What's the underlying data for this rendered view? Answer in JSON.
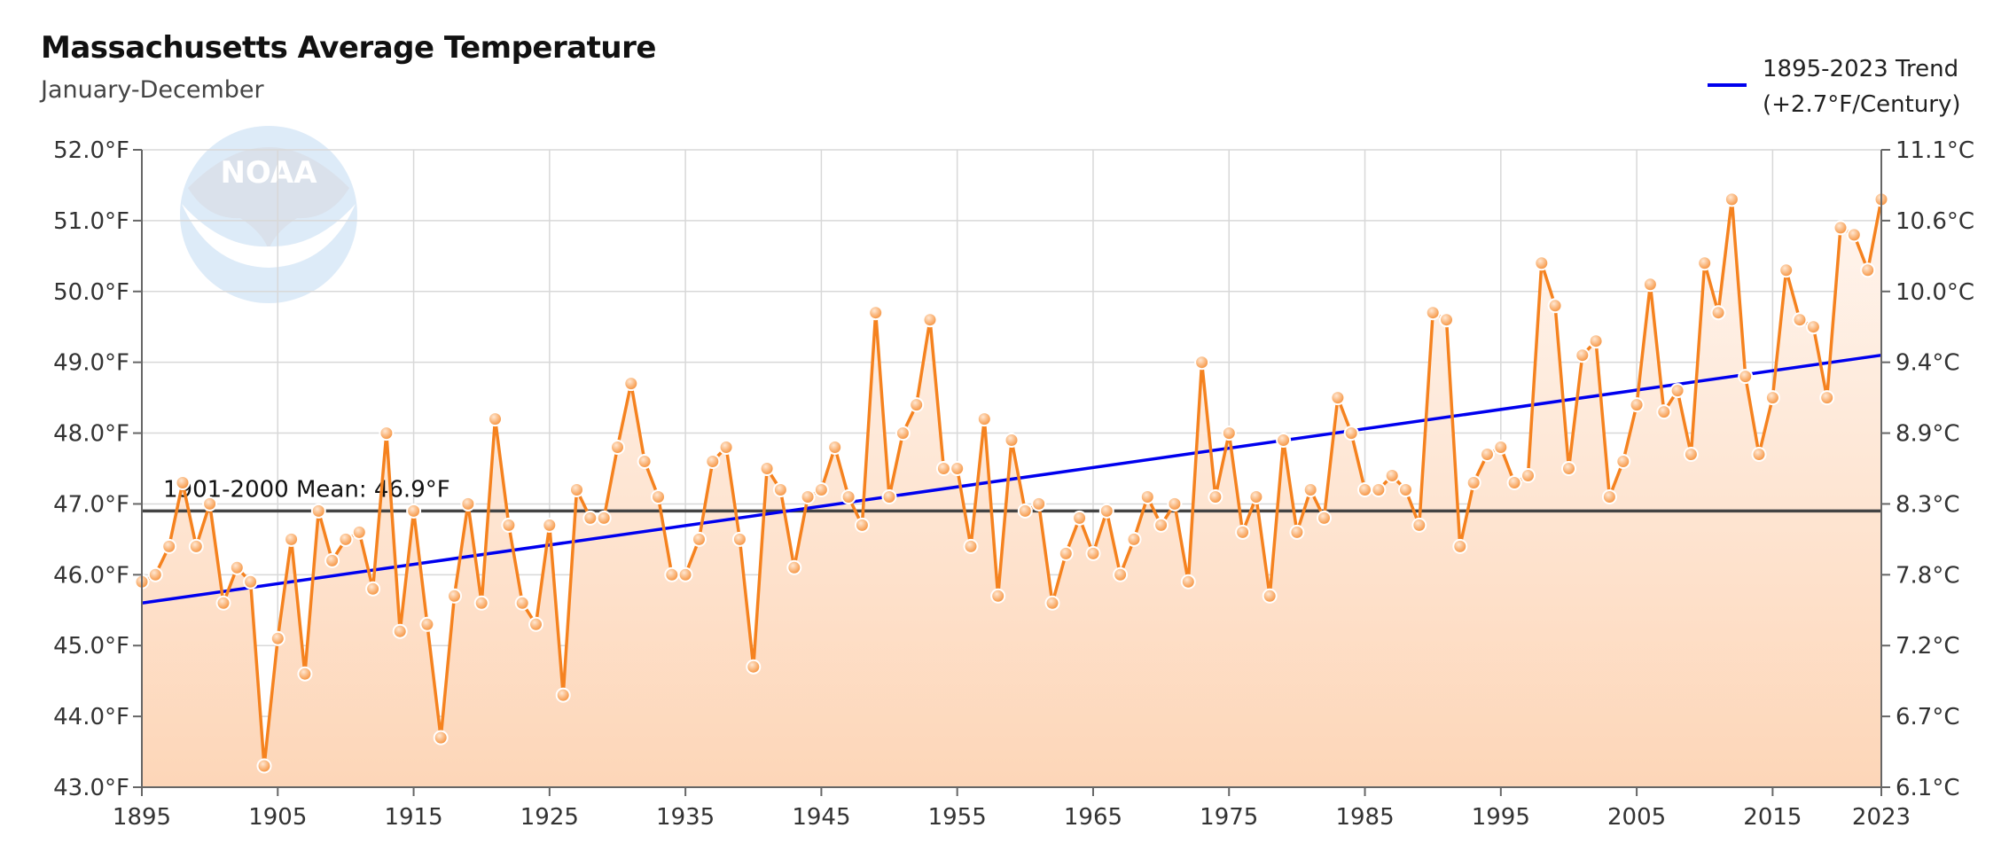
{
  "chart_data": {
    "type": "line",
    "title": "Massachusetts Average Temperature",
    "subtitle": "January-December",
    "xlabel": "",
    "ylabel": "",
    "xlim": [
      1895,
      2023
    ],
    "ylim": [
      43.0,
      52.0
    ],
    "x_ticks": [
      "1895",
      "1905",
      "1915",
      "1925",
      "1935",
      "1945",
      "1955",
      "1965",
      "1975",
      "1985",
      "1995",
      "2005",
      "2015",
      "2023"
    ],
    "y_ticks_left": [
      "52.0°F",
      "51.0°F",
      "50.0°F",
      "49.0°F",
      "48.0°F",
      "47.0°F",
      "46.0°F",
      "45.0°F",
      "44.0°F",
      "43.0°F"
    ],
    "y_ticks_right": [
      "11.1°C",
      "10.6°C",
      "10.0°C",
      "9.4°C",
      "8.9°C",
      "8.3°C",
      "7.8°C",
      "7.2°C",
      "6.7°C",
      "6.1°C"
    ],
    "grid": true,
    "legend_position": "top-right",
    "colors": {
      "series": "#f5821f",
      "trend": "#0000ee",
      "mean": "#444444",
      "fill": "#fdd9bf"
    },
    "mean": {
      "label": "1901-2000 Mean: 46.9°F",
      "value": 46.9
    },
    "trend": {
      "label_line1": "1895-2023 Trend",
      "label_line2": "(+2.7°F/Century)",
      "start": [
        1895,
        45.6
      ],
      "end": [
        2023,
        49.1
      ]
    },
    "series": [
      {
        "x": [
          1895,
          1896,
          1897,
          1898,
          1899,
          1900,
          1901,
          1902,
          1903,
          1904,
          1905,
          1906,
          1907,
          1908,
          1909,
          1910,
          1911,
          1912,
          1913,
          1914,
          1915,
          1916,
          1917,
          1918,
          1919,
          1920,
          1921,
          1922,
          1923,
          1924,
          1925,
          1926,
          1927,
          1928,
          1929,
          1930,
          1931,
          1932,
          1933,
          1934,
          1935,
          1936,
          1937,
          1938,
          1939,
          1940,
          1941,
          1942,
          1943,
          1944,
          1945,
          1946,
          1947,
          1948,
          1949,
          1950,
          1951,
          1952,
          1953,
          1954,
          1955,
          1956,
          1957,
          1958,
          1959,
          1960,
          1961,
          1962,
          1963,
          1964,
          1965,
          1966,
          1967,
          1968,
          1969,
          1970,
          1971,
          1972,
          1973,
          1974,
          1975,
          1976,
          1977,
          1978,
          1979,
          1980,
          1981,
          1982,
          1983,
          1984,
          1985,
          1986,
          1987,
          1988,
          1989,
          1990,
          1991,
          1992,
          1993,
          1994,
          1995,
          1996,
          1997,
          1998,
          1999,
          2000,
          2001,
          2002,
          2003,
          2004,
          2005,
          2006,
          2007,
          2008,
          2009,
          2010,
          2011,
          2012,
          2013,
          2014,
          2015,
          2016,
          2017,
          2018,
          2019,
          2020,
          2021,
          2022,
          2023
        ],
        "values": [
          45.9,
          46.0,
          46.4,
          47.3,
          46.4,
          47.0,
          45.6,
          46.1,
          45.9,
          43.3,
          45.1,
          46.5,
          44.6,
          46.9,
          46.2,
          46.5,
          46.6,
          45.8,
          48.0,
          45.2,
          46.9,
          45.3,
          43.7,
          45.7,
          47.0,
          45.6,
          48.2,
          46.7,
          45.6,
          45.3,
          46.7,
          44.3,
          47.2,
          46.8,
          46.8,
          47.8,
          48.7,
          47.6,
          47.1,
          46.0,
          46.0,
          46.5,
          47.6,
          47.8,
          46.5,
          44.7,
          47.5,
          47.2,
          46.1,
          47.1,
          47.2,
          47.8,
          47.1,
          46.7,
          49.7,
          47.1,
          48.0,
          48.4,
          49.6,
          47.5,
          47.5,
          46.4,
          48.2,
          45.7,
          47.9,
          46.9,
          47.0,
          45.6,
          46.3,
          46.8,
          46.3,
          46.9,
          46.0,
          46.5,
          47.1,
          46.7,
          47.0,
          45.9,
          49.0,
          47.1,
          48.0,
          46.6,
          47.1,
          45.7,
          47.9,
          46.6,
          47.2,
          46.8,
          48.5,
          48.0,
          47.2,
          47.2,
          47.4,
          47.2,
          46.7,
          49.7,
          49.6,
          46.4,
          47.3,
          47.7,
          47.8,
          47.3,
          47.4,
          50.4,
          49.8,
          47.5,
          49.1,
          49.3,
          47.1,
          47.6,
          48.4,
          50.1,
          48.3,
          48.6,
          47.7,
          50.4,
          49.7,
          51.3,
          48.8,
          47.7,
          48.5,
          50.3,
          49.6,
          49.5,
          48.5,
          50.9,
          50.8,
          50.3,
          51.3
        ]
      }
    ]
  }
}
